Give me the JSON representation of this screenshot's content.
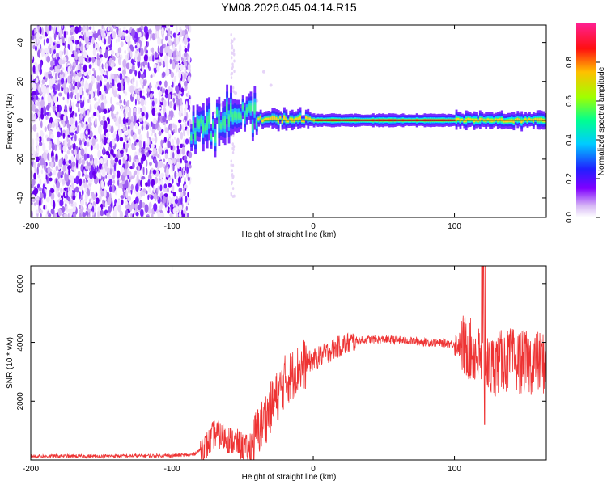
{
  "title": "YM08.2026.045.04.14.R15",
  "chart_data": [
    {
      "type": "heatmap",
      "xlabel": "Height of straight line (km)",
      "ylabel": "Frequency (Hz)",
      "xlim": [
        -200,
        165
      ],
      "ylim": [
        -50,
        49
      ],
      "xticks": [
        -200,
        -100,
        0,
        100
      ],
      "yticks": [
        40,
        20,
        0,
        -20,
        -40
      ],
      "colorbar": {
        "label": "Normalized spectral amplitude",
        "range": [
          0,
          1
        ],
        "ticks": [
          0.0,
          0.2,
          0.4,
          0.6,
          0.8
        ],
        "colormap": "white-purple-blue-cyan-green-yellow-red-magenta"
      },
      "features": [
        {
          "name": "broadband noise",
          "x_range": [
            -200,
            -87
          ],
          "freq_range": [
            -50,
            49
          ]
        },
        {
          "name": "narrow signal band",
          "x_range": [
            -87,
            165
          ],
          "center_freq": 0
        }
      ]
    },
    {
      "type": "line",
      "xlabel": "Height of straight line (km)",
      "ylabel": "SNR (10 * v/v)",
      "xlim": [
        -200,
        165
      ],
      "ylim": [
        0,
        6600
      ],
      "xticks": [
        -200,
        -100,
        0,
        100
      ],
      "yticks": [
        2000,
        4000,
        6000
      ],
      "series": [
        {
          "name": "SNR",
          "color": "#ee3333",
          "x": [
            -200,
            -150,
            -100,
            -85,
            -75,
            -70,
            -65,
            -60,
            -55,
            -50,
            -45,
            -40,
            -35,
            -30,
            -25,
            -20,
            -15,
            -10,
            -5,
            0,
            10,
            20,
            30,
            40,
            50,
            60,
            70,
            80,
            90,
            100,
            105,
            110,
            115,
            120,
            125,
            130,
            140,
            150,
            160,
            165
          ],
          "y": [
            130,
            130,
            150,
            180,
            500,
            900,
            800,
            700,
            600,
            450,
            300,
            900,
            1300,
            1800,
            2200,
            2700,
            2900,
            3100,
            3300,
            3400,
            3650,
            3900,
            4050,
            4100,
            4100,
            4080,
            4050,
            4000,
            3980,
            3950,
            3900,
            3800,
            3600,
            3300,
            3100,
            3300,
            3400,
            3300,
            3300,
            3300
          ]
        }
      ]
    }
  ]
}
